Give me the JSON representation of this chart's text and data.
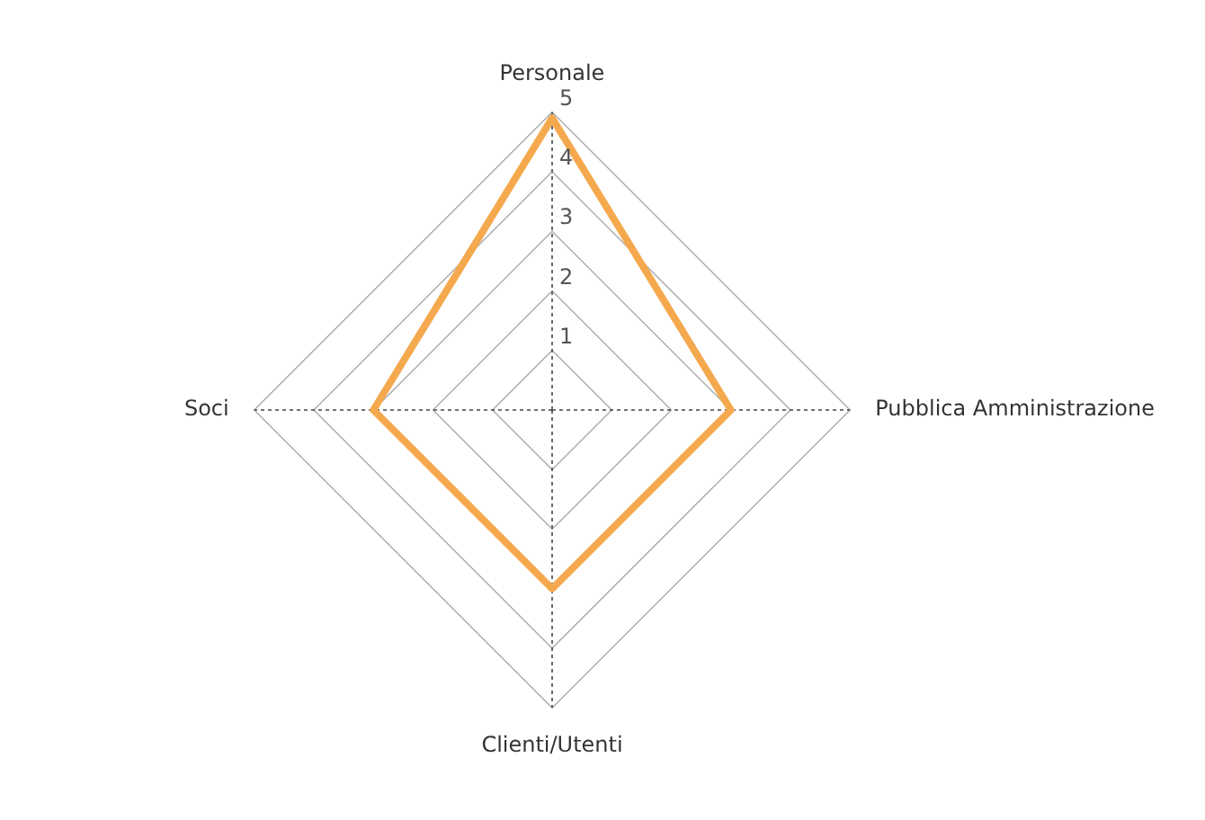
{
  "chart_data": {
    "type": "radar",
    "categories": [
      "Personale",
      "Pubblica Amministrazione",
      "Clienti/Utenti",
      "Soci"
    ],
    "series": [
      {
        "color": "#f5a94e",
        "values": [
          4.9,
          3,
          3,
          3
        ]
      }
    ],
    "ylim": [
      0,
      5
    ],
    "yticks": [
      1,
      2,
      3,
      4,
      5
    ],
    "grid": true,
    "legend": false,
    "marker": "none",
    "line_style": "solid"
  }
}
